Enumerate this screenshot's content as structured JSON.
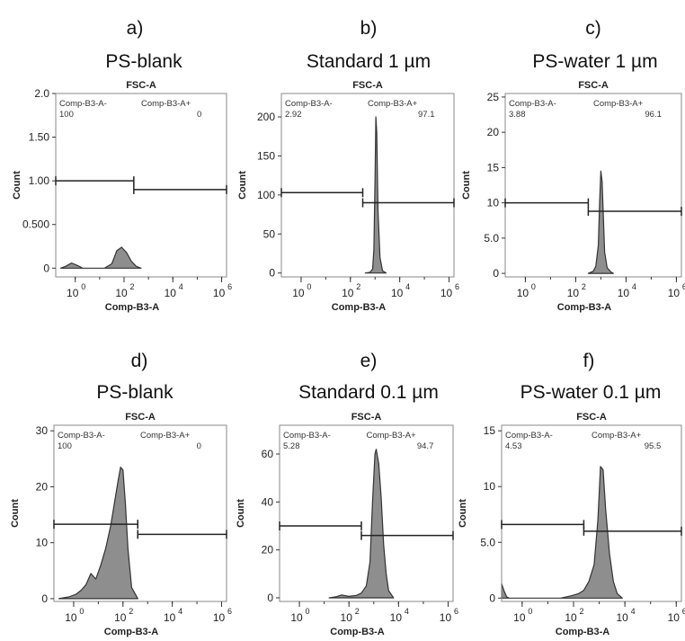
{
  "chart_data": [
    {
      "type": "histogram",
      "letter": "a)",
      "title": "PS-blank",
      "plot_label": "FSC-A",
      "xlabel": "Comp-B3-A",
      "ylabel": "Count",
      "xscale": "log",
      "xlim_log10": [
        -0.8,
        6.2
      ],
      "x_ticks": [
        {
          "base": "10",
          "exp": "0",
          "log": 0
        },
        {
          "base": "10",
          "exp": "2",
          "log": 2
        },
        {
          "base": "10",
          "exp": "4",
          "log": 4
        },
        {
          "base": "10",
          "exp": "6",
          "log": 6
        }
      ],
      "ylim": [
        -0.1,
        2.0
      ],
      "y_ticks": [
        {
          "value": 0,
          "label": "0"
        },
        {
          "value": 0.5,
          "label": "0.500"
        },
        {
          "value": 1.0,
          "label": "1.00"
        },
        {
          "value": 1.5,
          "label": "1.50"
        },
        {
          "value": 2.0,
          "label": "2.0"
        }
      ],
      "gates": [
        {
          "name": "Comp-B3-A-",
          "percent": "100",
          "range_log10": [
            -0.8,
            2.4
          ],
          "y": 1.0
        },
        {
          "name": "Comp-B3-A+",
          "percent": "0",
          "range_log10": [
            2.4,
            6.2
          ],
          "y": 0.9
        }
      ],
      "histogram": {
        "log10_x": [
          -0.6,
          -0.4,
          -0.15,
          0.1,
          0.3,
          0.5,
          0.7,
          0.8,
          1.2,
          1.5,
          1.7,
          1.9,
          2.1,
          2.3,
          2.5,
          2.7
        ],
        "counts": [
          0,
          0.02,
          0.06,
          0.03,
          0.0,
          0.0,
          0.0,
          0.0,
          0.0,
          0.05,
          0.2,
          0.24,
          0.18,
          0.08,
          0.02,
          0
        ]
      }
    },
    {
      "type": "histogram",
      "letter": "b)",
      "title": "Standard 1 µm",
      "plot_label": "FSC-A",
      "xlabel": "Comp-B3-A",
      "ylabel": "Count",
      "xscale": "log",
      "xlim_log10": [
        -0.8,
        6.2
      ],
      "x_ticks": [
        {
          "base": "10",
          "exp": "0",
          "log": 0
        },
        {
          "base": "10",
          "exp": "2",
          "log": 2
        },
        {
          "base": "10",
          "exp": "4",
          "log": 4
        },
        {
          "base": "10",
          "exp": "6",
          "log": 6
        }
      ],
      "ylim": [
        -5,
        230
      ],
      "y_ticks": [
        {
          "value": 0,
          "label": "0"
        },
        {
          "value": 50,
          "label": "50"
        },
        {
          "value": 100,
          "label": "100"
        },
        {
          "value": 150,
          "label": "150"
        },
        {
          "value": 200,
          "label": "200"
        }
      ],
      "gates": [
        {
          "name": "Comp-B3-A-",
          "percent": "2.92",
          "range_log10": [
            -0.8,
            2.5
          ],
          "y": 103
        },
        {
          "name": "Comp-B3-A+",
          "percent": "97.1",
          "range_log10": [
            2.5,
            6.2
          ],
          "y": 90
        }
      ],
      "histogram": {
        "log10_x": [
          2.6,
          2.8,
          2.9,
          2.95,
          3.0,
          3.03,
          3.07,
          3.12,
          3.2,
          3.3,
          3.45
        ],
        "counts": [
          0,
          1,
          5,
          30,
          120,
          200,
          180,
          80,
          20,
          3,
          0
        ]
      }
    },
    {
      "type": "histogram",
      "letter": "c)",
      "title": "PS-water 1 µm",
      "plot_label": "FSC-A",
      "xlabel": "Comp-B3-A",
      "ylabel": "Count",
      "xscale": "log",
      "xlim_log10": [
        -0.8,
        6.2
      ],
      "x_ticks": [
        {
          "base": "10",
          "exp": "0",
          "log": 0
        },
        {
          "base": "10",
          "exp": "2",
          "log": 2
        },
        {
          "base": "10",
          "exp": "4",
          "log": 4
        },
        {
          "base": "10",
          "exp": "6",
          "log": 6
        }
      ],
      "ylim": [
        -0.5,
        25.5
      ],
      "y_ticks": [
        {
          "value": 0,
          "label": "0"
        },
        {
          "value": 5,
          "label": "5.0"
        },
        {
          "value": 10,
          "label": "10"
        },
        {
          "value": 15,
          "label": "15"
        },
        {
          "value": 20,
          "label": "20"
        },
        {
          "value": 25,
          "label": "25"
        }
      ],
      "gates": [
        {
          "name": "Comp-B3-A-",
          "percent": "3.88",
          "range_log10": [
            -0.8,
            2.5
          ],
          "y": 10
        },
        {
          "name": "Comp-B3-A+",
          "percent": "96.1",
          "range_log10": [
            2.5,
            6.2
          ],
          "y": 8.8
        }
      ],
      "histogram": {
        "log10_x": [
          2.5,
          2.7,
          2.8,
          2.9,
          2.95,
          3.0,
          3.05,
          3.1,
          3.15,
          3.25,
          3.4,
          3.5
        ],
        "counts": [
          0,
          0.3,
          1,
          4,
          10,
          14.5,
          13,
          8,
          3,
          0.8,
          0.2,
          0
        ]
      }
    },
    {
      "type": "histogram",
      "letter": "d)",
      "title": "PS-blank",
      "plot_label": "FSC-A",
      "xlabel": "Comp-B3-A",
      "ylabel": "Count",
      "xscale": "log",
      "xlim_log10": [
        -0.8,
        6.2
      ],
      "x_ticks": [
        {
          "base": "10",
          "exp": "0",
          "log": 0
        },
        {
          "base": "10",
          "exp": "2",
          "log": 2
        },
        {
          "base": "10",
          "exp": "4",
          "log": 4
        },
        {
          "base": "10",
          "exp": "6",
          "log": 6
        }
      ],
      "ylim": [
        -0.5,
        31
      ],
      "y_ticks": [
        {
          "value": 0,
          "label": "0"
        },
        {
          "value": 10,
          "label": "10"
        },
        {
          "value": 20,
          "label": "20"
        },
        {
          "value": 30,
          "label": "30"
        }
      ],
      "gates": [
        {
          "name": "Comp-B3-A-",
          "percent": "100",
          "range_log10": [
            -0.8,
            2.6
          ],
          "y": 13.3
        },
        {
          "name": "Comp-B3-A+",
          "percent": "0",
          "range_log10": [
            2.6,
            6.2
          ],
          "y": 11.5
        }
      ],
      "histogram": {
        "log10_x": [
          -0.6,
          -0.2,
          0.1,
          0.3,
          0.5,
          0.7,
          0.9,
          1.1,
          1.3,
          1.5,
          1.65,
          1.8,
          1.9,
          2.0,
          2.1,
          2.2,
          2.35,
          2.6
        ],
        "counts": [
          0,
          0.3,
          0.8,
          1.5,
          2.5,
          4.5,
          3.5,
          6,
          9,
          13,
          17,
          21,
          23.5,
          23,
          17,
          9,
          2,
          0
        ]
      }
    },
    {
      "type": "histogram",
      "letter": "e)",
      "title": "Standard 0.1 µm",
      "plot_label": "FSC-A",
      "xlabel": "Comp-B3-A",
      "ylabel": "Count",
      "xscale": "log",
      "xlim_log10": [
        -0.8,
        6.2
      ],
      "x_ticks": [
        {
          "base": "10",
          "exp": "0",
          "log": 0
        },
        {
          "base": "10",
          "exp": "2",
          "log": 2
        },
        {
          "base": "10",
          "exp": "4",
          "log": 4
        },
        {
          "base": "10",
          "exp": "6",
          "log": 6
        }
      ],
      "ylim": [
        -1.5,
        72
      ],
      "y_ticks": [
        {
          "value": 0,
          "label": "0"
        },
        {
          "value": 20,
          "label": "20"
        },
        {
          "value": 40,
          "label": "40"
        },
        {
          "value": 60,
          "label": "60"
        }
      ],
      "gates": [
        {
          "name": "Comp-B3-A-",
          "percent": "5.28",
          "range_log10": [
            -0.8,
            2.5
          ],
          "y": 30
        },
        {
          "name": "Comp-B3-A+",
          "percent": "94.7",
          "range_log10": [
            2.5,
            6.2
          ],
          "y": 26
        }
      ],
      "histogram": {
        "log10_x": [
          1.2,
          1.5,
          1.7,
          2.0,
          2.3,
          2.5,
          2.7,
          2.85,
          2.95,
          3.05,
          3.1,
          3.2,
          3.3,
          3.4,
          3.5,
          3.6,
          3.8
        ],
        "counts": [
          0,
          0.5,
          1.2,
          0.6,
          1,
          2,
          5,
          15,
          40,
          60,
          62,
          56,
          42,
          22,
          10,
          3,
          0
        ]
      }
    },
    {
      "type": "histogram",
      "letter": "f)",
      "title": "PS-water 0.1 µm",
      "plot_label": "FSC-A",
      "xlabel": "Comp-B3-A",
      "ylabel": "Count",
      "xscale": "log",
      "xlim_log10": [
        -0.8,
        6.2
      ],
      "x_ticks": [
        {
          "base": "10",
          "exp": "0",
          "log": 0
        },
        {
          "base": "10",
          "exp": "2",
          "log": 2
        },
        {
          "base": "10",
          "exp": "4",
          "log": 4
        },
        {
          "base": "10",
          "exp": "6",
          "log": 6
        }
      ],
      "ylim": [
        -0.3,
        15.5
      ],
      "y_ticks": [
        {
          "value": 0,
          "label": "0"
        },
        {
          "value": 5,
          "label": "5.0"
        },
        {
          "value": 10,
          "label": "10"
        },
        {
          "value": 15,
          "label": "15"
        }
      ],
      "gates": [
        {
          "name": "Comp-B3-A-",
          "percent": "4.53",
          "range_log10": [
            -0.8,
            2.4
          ],
          "y": 6.6
        },
        {
          "name": "Comp-B3-A+",
          "percent": "95.5",
          "range_log10": [
            2.4,
            6.2
          ],
          "y": 6.0
        }
      ],
      "histogram": {
        "log10_x": [
          -0.8,
          -0.7,
          -0.6,
          -0.5,
          1.5,
          1.9,
          2.2,
          2.4,
          2.6,
          2.8,
          2.95,
          3.05,
          3.15,
          3.25,
          3.4,
          3.55,
          3.7,
          3.9
        ],
        "counts": [
          1.3,
          0.6,
          0.1,
          0,
          0,
          0.2,
          0.4,
          0.7,
          1.5,
          3,
          7,
          11.8,
          11.5,
          8,
          4,
          1.5,
          0.4,
          0
        ]
      }
    }
  ]
}
